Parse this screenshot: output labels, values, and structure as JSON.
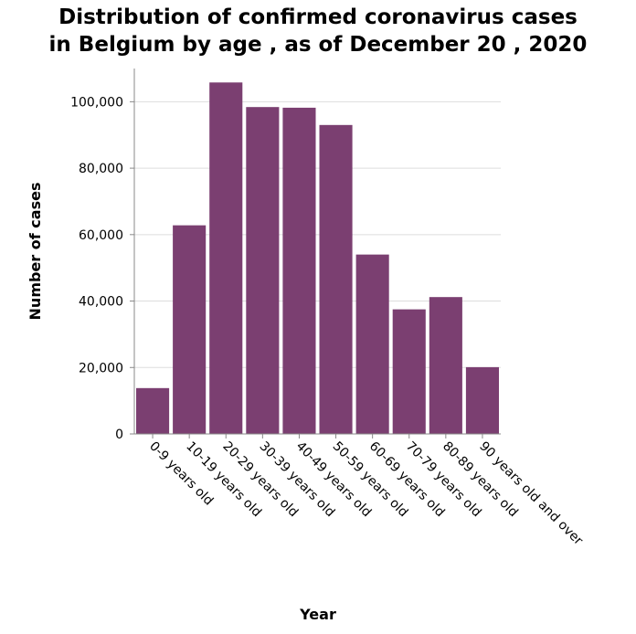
{
  "chart_data": {
    "type": "bar",
    "title_lines": [
      "Distribution of confirmed coronavirus cases",
      "in Belgium by age , as of December 20 , 2020"
    ],
    "xlabel": "Year",
    "ylabel": "Number of cases",
    "categories": [
      "0-9 years old",
      "10-19 years old",
      "20-29 years old",
      "30-39 years old",
      "40-49 years old",
      "50-59 years old",
      "60-69 years old",
      "70-79 years old",
      "80-89 years old",
      "90 years old and over"
    ],
    "values": [
      13800,
      62800,
      105800,
      98400,
      98200,
      93000,
      54000,
      37500,
      41200,
      20100
    ],
    "ylim": [
      0,
      110000
    ],
    "yticks": [
      0,
      20000,
      40000,
      60000,
      80000,
      100000
    ],
    "ytick_labels": [
      "0",
      "20,000",
      "40,000",
      "60,000",
      "80,000",
      "100,000"
    ],
    "bar_color": "#7b3f71",
    "grid": true
  }
}
